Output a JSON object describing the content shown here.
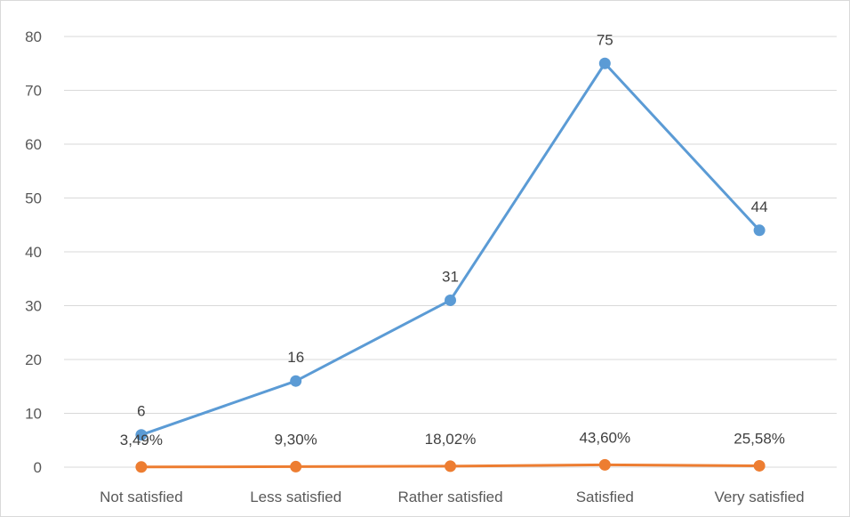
{
  "chart_data": {
    "type": "line",
    "title": "",
    "xlabel": "",
    "ylabel": "",
    "categories": [
      "Not satisfied",
      "Less satisfied",
      "Rather satisfied",
      "Satisfied",
      "Very satisfied"
    ],
    "ylim": [
      0,
      80
    ],
    "yticks": [
      0,
      10,
      20,
      30,
      40,
      50,
      60,
      70,
      80
    ],
    "grid": true,
    "legend": "none",
    "series": [
      {
        "values": [
          6,
          16,
          31,
          75,
          44
        ],
        "data_labels": [
          "6",
          "16",
          "31",
          "75",
          "44"
        ],
        "color": "#5b9bd5"
      },
      {
        "values": [
          0.0349,
          0.093,
          0.1802,
          0.436,
          0.2558
        ],
        "data_labels": [
          "3,49%",
          "9,30%",
          "18,02%",
          "43,60%",
          "25,58%"
        ],
        "color": "#ed7d31"
      }
    ]
  }
}
